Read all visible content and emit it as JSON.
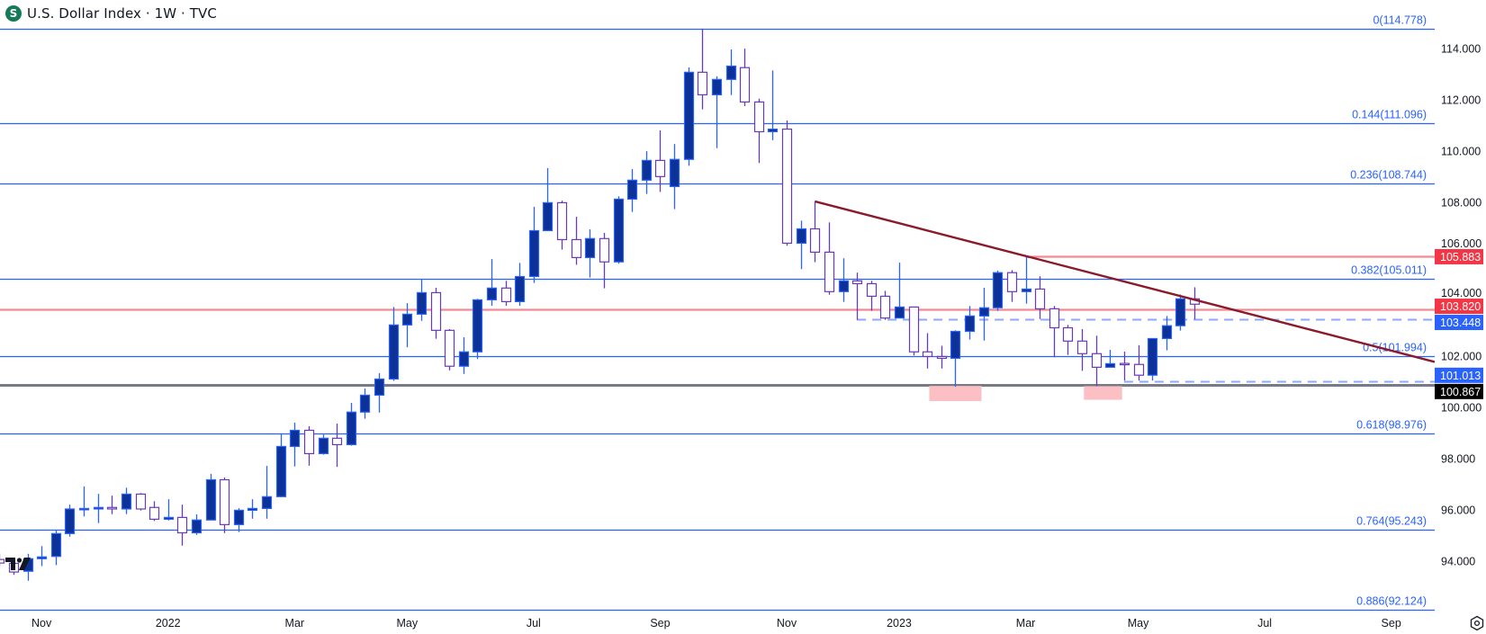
{
  "header": {
    "symbol_icon": "dollar-s-logo",
    "symbol_letter": "S",
    "title": "U.S. Dollar Index · 1W · TVC"
  },
  "icons": {
    "watermark": "tradingview-logo",
    "settings": "gear-icon"
  },
  "chart_data": {
    "type": "candlestick",
    "title": "U.S. Dollar Index · 1W · TVC",
    "interval": "weekly",
    "colors": {
      "up_fill": "#0c3299",
      "up_border": "#2962ff",
      "down_fill": "#ffffff",
      "down_border": "#673ab7",
      "fib": "#2962ff",
      "trendline": "#8b1a2b",
      "resistance": "#f28b91",
      "dashed": "#8aa8ff",
      "support": "#787b86",
      "zone": "#fbbfc4"
    },
    "ylim": [
      92.0,
      115.5
    ],
    "y_ticks": [
      "94.000",
      "96.000",
      "98.000",
      "100.000",
      "102.000",
      "104.000",
      "106.000",
      "108.000",
      "110.000",
      "112.000",
      "114.000"
    ],
    "y_tick_values": [
      94,
      96,
      98,
      100,
      102,
      104,
      106,
      108,
      110,
      112,
      114
    ],
    "x_ticks": [
      {
        "label": "Nov",
        "date": "2021-11-01"
      },
      {
        "label": "2022",
        "date": "2022-01-03"
      },
      {
        "label": "Mar",
        "date": "2022-03-07"
      },
      {
        "label": "May",
        "date": "2022-05-02"
      },
      {
        "label": "Jul",
        "date": "2022-07-04"
      },
      {
        "label": "Sep",
        "date": "2022-09-05"
      },
      {
        "label": "Nov",
        "date": "2022-11-07"
      },
      {
        "label": "2023",
        "date": "2023-01-02"
      },
      {
        "label": "Mar",
        "date": "2023-03-06"
      },
      {
        "label": "May",
        "date": "2023-05-01"
      },
      {
        "label": "Jul",
        "date": "2023-07-03"
      },
      {
        "label": "Sep",
        "date": "2023-09-04"
      }
    ],
    "candles_columns": [
      "date",
      "open",
      "high",
      "low",
      "close"
    ],
    "candles": [
      [
        "2021-10-11",
        94.07,
        94.3,
        93.8,
        93.93
      ],
      [
        "2021-10-18",
        93.92,
        94.13,
        93.47,
        93.58
      ],
      [
        "2021-10-25",
        93.61,
        94.29,
        93.24,
        94.1
      ],
      [
        "2021-11-01",
        94.1,
        94.59,
        93.81,
        94.17
      ],
      [
        "2021-11-08",
        94.19,
        95.22,
        93.85,
        95.08
      ],
      [
        "2021-11-15",
        95.08,
        96.21,
        94.96,
        96.04
      ],
      [
        "2021-11-22",
        96.03,
        96.92,
        95.75,
        96.06
      ],
      [
        "2021-11-29",
        96.04,
        96.63,
        95.49,
        96.1
      ],
      [
        "2021-12-06",
        96.1,
        96.56,
        95.84,
        96.04
      ],
      [
        "2021-12-13",
        96.04,
        96.87,
        95.84,
        96.62
      ],
      [
        "2021-12-20",
        96.62,
        96.66,
        95.98,
        96.04
      ],
      [
        "2021-12-27",
        96.1,
        96.34,
        95.57,
        95.64
      ],
      [
        "2022-01-03",
        95.64,
        96.42,
        95.59,
        95.71
      ],
      [
        "2022-01-10",
        95.71,
        96.21,
        94.61,
        95.11
      ],
      [
        "2022-01-17",
        95.11,
        95.83,
        95.03,
        95.61
      ],
      [
        "2022-01-24",
        95.61,
        97.41,
        95.6,
        97.18
      ],
      [
        "2022-01-31",
        97.18,
        97.27,
        95.1,
        95.43
      ],
      [
        "2022-02-07",
        95.43,
        96.07,
        95.14,
        95.99
      ],
      [
        "2022-02-14",
        95.99,
        96.42,
        95.66,
        96.06
      ],
      [
        "2022-02-21",
        96.06,
        97.72,
        95.66,
        96.52
      ],
      [
        "2022-02-28",
        96.52,
        98.95,
        96.52,
        98.48
      ],
      [
        "2022-03-07",
        98.48,
        99.41,
        97.7,
        99.11
      ],
      [
        "2022-03-14",
        99.11,
        99.27,
        97.73,
        98.2
      ],
      [
        "2022-03-21",
        98.2,
        98.94,
        98.16,
        98.8
      ],
      [
        "2022-03-28",
        98.8,
        99.37,
        97.68,
        98.55
      ],
      [
        "2022-04-04",
        98.55,
        100.18,
        98.51,
        99.82
      ],
      [
        "2022-04-11",
        99.82,
        100.74,
        99.56,
        100.48
      ],
      [
        "2022-04-18",
        100.48,
        101.34,
        99.8,
        101.11
      ],
      [
        "2022-04-25",
        101.11,
        103.92,
        101.04,
        103.22
      ],
      [
        "2022-05-02",
        103.22,
        104.07,
        102.35,
        103.64
      ],
      [
        "2022-05-09",
        103.64,
        105.01,
        103.38,
        104.48
      ],
      [
        "2022-05-16",
        104.48,
        104.67,
        102.68,
        103.01
      ],
      [
        "2022-05-23",
        103.01,
        103.06,
        101.45,
        101.61
      ],
      [
        "2022-05-30",
        101.61,
        102.74,
        101.31,
        102.17
      ],
      [
        "2022-06-06",
        102.17,
        104.24,
        101.89,
        104.2
      ],
      [
        "2022-06-13",
        104.2,
        105.79,
        103.97,
        104.66
      ],
      [
        "2022-06-20",
        104.66,
        104.94,
        103.97,
        104.13
      ],
      [
        "2022-06-27",
        104.13,
        105.64,
        103.97,
        105.11
      ],
      [
        "2022-07-04",
        105.11,
        107.83,
        104.86,
        106.9
      ],
      [
        "2022-07-11",
        106.9,
        109.34,
        106.9,
        107.99
      ],
      [
        "2022-07-18",
        107.99,
        108.07,
        106.16,
        106.55
      ],
      [
        "2022-07-25",
        106.55,
        107.44,
        105.57,
        105.85
      ],
      [
        "2022-08-01",
        105.85,
        106.95,
        105.07,
        106.59
      ],
      [
        "2022-08-08",
        106.59,
        106.81,
        104.65,
        105.68
      ],
      [
        "2022-08-15",
        105.68,
        108.24,
        105.61,
        108.13
      ],
      [
        "2022-08-22",
        108.13,
        109.3,
        107.63,
        108.87
      ],
      [
        "2022-08-29",
        108.87,
        110.0,
        108.33,
        109.64
      ],
      [
        "2022-09-05",
        109.64,
        110.81,
        108.41,
        109.01
      ],
      [
        "2022-09-12",
        108.62,
        110.28,
        107.74,
        109.68
      ],
      [
        "2022-09-19",
        109.68,
        113.27,
        109.43,
        113.08
      ],
      [
        "2022-09-26",
        113.08,
        114.78,
        111.63,
        112.2
      ],
      [
        "2022-10-03",
        112.2,
        112.92,
        110.12,
        112.8
      ],
      [
        "2022-10-10",
        112.8,
        113.97,
        112.19,
        113.32
      ],
      [
        "2022-10-17",
        113.26,
        114.0,
        111.76,
        111.92
      ],
      [
        "2022-10-24",
        111.92,
        112.05,
        109.54,
        110.76
      ],
      [
        "2022-10-31",
        110.76,
        113.15,
        110.43,
        110.86
      ],
      [
        "2022-11-07",
        110.86,
        111.2,
        106.31,
        106.41
      ],
      [
        "2022-11-14",
        106.41,
        107.29,
        105.4,
        106.97
      ],
      [
        "2022-11-21",
        106.97,
        108.03,
        105.67,
        106.06
      ],
      [
        "2022-11-28",
        106.06,
        107.22,
        104.4,
        104.52
      ],
      [
        "2022-12-05",
        104.52,
        105.82,
        104.12,
        104.94
      ],
      [
        "2022-12-12",
        104.94,
        105.26,
        103.42,
        104.83
      ],
      [
        "2022-12-19",
        104.83,
        104.94,
        103.77,
        104.34
      ],
      [
        "2022-12-26",
        104.34,
        104.55,
        103.42,
        103.49
      ],
      [
        "2023-01-02",
        103.49,
        105.65,
        103.49,
        103.92
      ],
      [
        "2023-01-09",
        103.92,
        103.92,
        102.03,
        102.17
      ],
      [
        "2023-01-16",
        102.17,
        102.9,
        101.52,
        101.99
      ],
      [
        "2023-01-23",
        101.99,
        102.41,
        101.52,
        101.92
      ],
      [
        "2023-01-30",
        101.92,
        103.01,
        100.81,
        102.97
      ],
      [
        "2023-02-06",
        102.97,
        103.96,
        102.65,
        103.57
      ],
      [
        "2023-02-13",
        103.57,
        104.67,
        102.61,
        103.89
      ],
      [
        "2023-02-20",
        103.89,
        105.34,
        103.77,
        105.26
      ],
      [
        "2023-02-27",
        105.26,
        105.36,
        104.12,
        104.52
      ],
      [
        "2023-03-06",
        104.52,
        105.89,
        104.05,
        104.62
      ],
      [
        "2023-03-13",
        104.62,
        105.12,
        103.45,
        103.85
      ],
      [
        "2023-03-20",
        103.85,
        103.96,
        101.96,
        103.11
      ],
      [
        "2023-03-27",
        103.11,
        103.22,
        102.05,
        102.59
      ],
      [
        "2023-04-03",
        102.59,
        103.06,
        101.43,
        102.1
      ],
      [
        "2023-04-10",
        102.1,
        102.8,
        100.83,
        101.57
      ],
      [
        "2023-04-17",
        101.57,
        102.25,
        101.57,
        101.71
      ],
      [
        "2023-04-24",
        101.72,
        102.18,
        101.05,
        101.7
      ],
      [
        "2023-05-01",
        101.68,
        102.43,
        101.05,
        101.26
      ],
      [
        "2023-05-08",
        101.26,
        102.69,
        101.05,
        102.69
      ],
      [
        "2023-05-15",
        102.69,
        103.57,
        102.23,
        103.19
      ],
      [
        "2023-05-22",
        103.19,
        104.41,
        103.0,
        104.24
      ],
      [
        "2023-05-29",
        104.24,
        104.69,
        103.44,
        104.03
      ]
    ],
    "fib_levels": [
      {
        "ratio": 0,
        "price": 114.778,
        "label": "0(114.778)"
      },
      {
        "ratio": 0.144,
        "price": 111.096,
        "label": "0.144(111.096)"
      },
      {
        "ratio": 0.236,
        "price": 108.744,
        "label": "0.236(108.744)"
      },
      {
        "ratio": 0.382,
        "price": 105.011,
        "label": "0.382(105.011)"
      },
      {
        "ratio": 0.5,
        "price": 101.994,
        "label": "0.5(101.994)"
      },
      {
        "ratio": 0.618,
        "price": 98.976,
        "label": "0.618(98.976)"
      },
      {
        "ratio": 0.764,
        "price": 95.243,
        "label": "0.764(95.243)"
      },
      {
        "ratio": 0.886,
        "price": 92.124,
        "label": "0.886(92.124)"
      }
    ],
    "horizontal_lines": [
      {
        "price": 105.883,
        "style": "solid",
        "color": "#f28b91",
        "from": "2023-03-06"
      },
      {
        "price": 103.82,
        "style": "solid",
        "color": "#f28b91",
        "from": null
      },
      {
        "price": 103.448,
        "style": "dashed",
        "color": "#8aa8ff",
        "from": "2022-12-12"
      },
      {
        "price": 101.013,
        "style": "dashed",
        "color": "#8aa8ff",
        "from": "2023-04-24"
      },
      {
        "price": 100.867,
        "style": "solid",
        "color": "#787b86",
        "from": null
      }
    ],
    "trendline": {
      "points": [
        [
          "2022-11-21",
          108.04
        ],
        [
          "2023-03-06",
          105.91
        ]
      ],
      "extend": "right",
      "color": "#8b1a2b"
    },
    "zones": [
      {
        "from": "2023-01-17",
        "to": "2023-02-12",
        "top": 100.84,
        "bottom": 100.25,
        "color": "#fbbfc4"
      },
      {
        "from": "2023-04-04",
        "to": "2023-04-23",
        "top": 100.83,
        "bottom": 100.3,
        "color": "#fbbfc4"
      }
    ],
    "price_badges": [
      {
        "value": 105.883,
        "label": "105.883",
        "bg": "#f23645",
        "fg": "#ffffff"
      },
      {
        "value": 103.82,
        "label": "103.820",
        "bg": "#f23645",
        "fg": "#ffffff"
      },
      {
        "value": 103.448,
        "label": "103.448",
        "bg": "#2962ff",
        "fg": "#ffffff"
      },
      {
        "value": 101.013,
        "label": "101.013",
        "bg": "#2962ff",
        "fg": "#ffffff"
      },
      {
        "value": 100.867,
        "label": "100.867",
        "bg": "#000000",
        "fg": "#ffffff"
      }
    ]
  }
}
